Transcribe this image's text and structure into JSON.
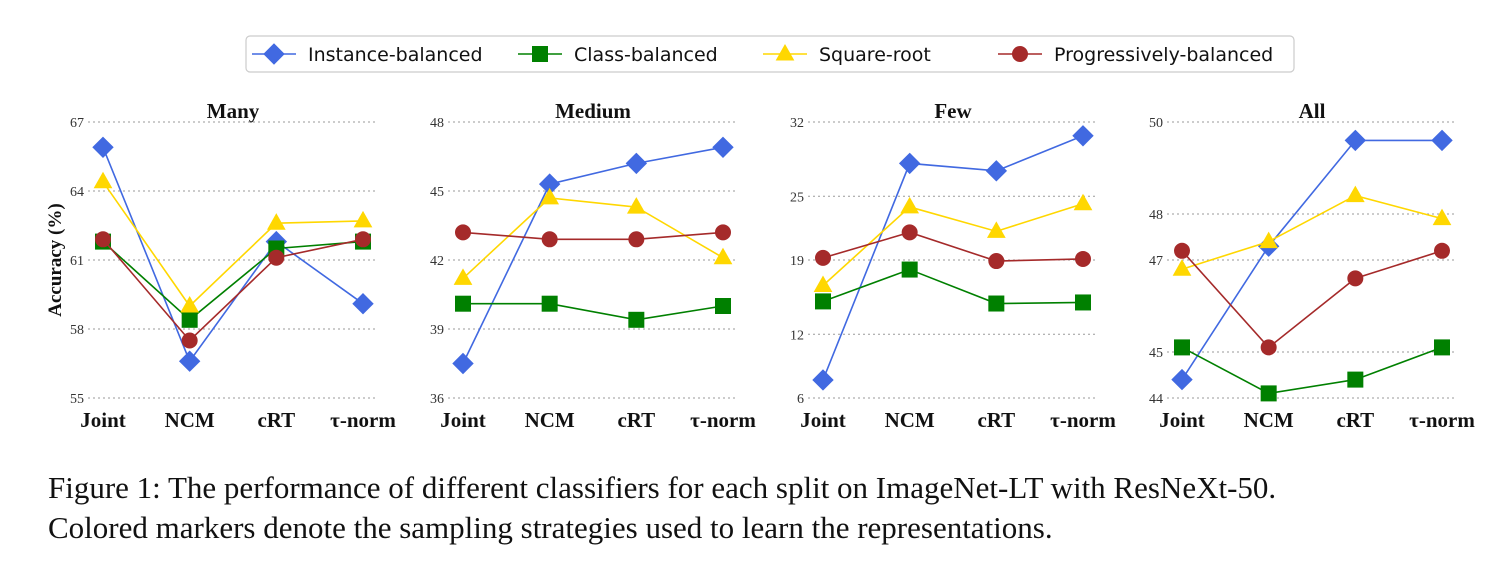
{
  "caption": {
    "line1": "Figure 1: The performance of different classifiers for each split on ImageNet-LT with ResNeXt-50.",
    "line2": "Colored markers denote the sampling strategies used to learn the representations."
  },
  "legend": {
    "placement": "top-center",
    "entries": [
      {
        "label": "Instance-balanced",
        "color": "#4169e1",
        "marker": "diamond"
      },
      {
        "label": "Class-balanced",
        "color": "#008000",
        "marker": "square"
      },
      {
        "label": "Square-root",
        "color": "#ffd700",
        "marker": "triangle"
      },
      {
        "label": "Progressively-balanced",
        "color": "#a52a2a",
        "marker": "circle"
      }
    ]
  },
  "chart_data": [
    {
      "type": "line",
      "title": "Many",
      "ylabel": "Accuracy (%)",
      "categories": [
        "Joint",
        "NCM",
        "cRT",
        "τ-norm"
      ],
      "ylim": [
        55,
        67
      ],
      "yticks": [
        55,
        58,
        61,
        64,
        67
      ],
      "grid": "horizontal dotted",
      "series": [
        {
          "name": "Instance-balanced",
          "values": [
            65.9,
            56.6,
            61.8,
            59.1
          ]
        },
        {
          "name": "Class-balanced",
          "values": [
            61.8,
            58.4,
            61.5,
            61.8
          ]
        },
        {
          "name": "Square-root",
          "values": [
            64.4,
            59.0,
            62.6,
            62.7
          ]
        },
        {
          "name": "Progressively-balanced",
          "values": [
            61.9,
            57.5,
            61.1,
            61.9
          ]
        }
      ]
    },
    {
      "type": "line",
      "title": "Medium",
      "ylabel": "",
      "categories": [
        "Joint",
        "NCM",
        "cRT",
        "τ-norm"
      ],
      "ylim": [
        36,
        48
      ],
      "yticks": [
        36,
        39,
        42,
        45,
        48
      ],
      "grid": "horizontal dotted",
      "series": [
        {
          "name": "Instance-balanced",
          "values": [
            37.5,
            45.3,
            46.2,
            46.9
          ]
        },
        {
          "name": "Class-balanced",
          "values": [
            40.1,
            40.1,
            39.4,
            40.0
          ]
        },
        {
          "name": "Square-root",
          "values": [
            41.2,
            44.7,
            44.3,
            42.1
          ]
        },
        {
          "name": "Progressively-balanced",
          "values": [
            43.2,
            42.9,
            42.9,
            43.2
          ]
        }
      ]
    },
    {
      "type": "line",
      "title": "Few",
      "ylabel": "",
      "categories": [
        "Joint",
        "NCM",
        "cRT",
        "τ-norm"
      ],
      "ylim": [
        6,
        32
      ],
      "yticks": [
        6,
        12,
        19,
        25,
        32
      ],
      "grid": "horizontal dotted",
      "series": [
        {
          "name": "Instance-balanced",
          "values": [
            7.7,
            28.1,
            27.4,
            30.7
          ]
        },
        {
          "name": "Class-balanced",
          "values": [
            15.1,
            18.1,
            14.9,
            15.0
          ]
        },
        {
          "name": "Square-root",
          "values": [
            16.6,
            24.0,
            21.7,
            24.3
          ]
        },
        {
          "name": "Progressively-balanced",
          "values": [
            19.2,
            21.6,
            18.9,
            19.1
          ]
        }
      ]
    },
    {
      "type": "line",
      "title": "All",
      "ylabel": "",
      "categories": [
        "Joint",
        "NCM",
        "cRT",
        "τ-norm"
      ],
      "ylim": [
        44,
        50
      ],
      "yticks": [
        44,
        45,
        47,
        48,
        50
      ],
      "grid": "horizontal dotted",
      "series": [
        {
          "name": "Instance-balanced",
          "values": [
            44.4,
            47.3,
            49.6,
            49.6
          ]
        },
        {
          "name": "Class-balanced",
          "values": [
            45.1,
            44.1,
            44.4,
            45.1
          ]
        },
        {
          "name": "Square-root",
          "values": [
            46.8,
            47.4,
            48.4,
            47.9
          ]
        },
        {
          "name": "Progressively-balanced",
          "values": [
            47.2,
            45.1,
            46.6,
            47.2
          ]
        }
      ]
    }
  ]
}
